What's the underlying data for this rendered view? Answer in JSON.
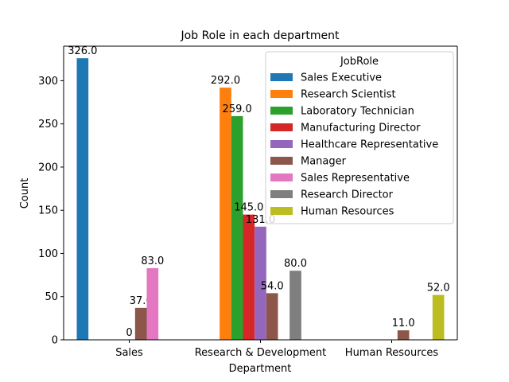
{
  "chart_data": {
    "type": "bar",
    "title": "Job Role in each department",
    "xlabel": "Department",
    "ylabel": "Count",
    "ylim": [
      0,
      340
    ],
    "yticks": [
      0,
      50,
      100,
      150,
      200,
      250,
      300
    ],
    "categories": [
      "Sales",
      "Research & Development",
      "Human Resources"
    ],
    "legend": {
      "title": "JobRole",
      "position": "upper-right"
    },
    "series": [
      {
        "name": "Sales Executive",
        "color": "#1f77b4",
        "values": [
          326,
          null,
          null
        ],
        "labels": [
          "326.0",
          "",
          ""
        ]
      },
      {
        "name": "Research Scientist",
        "color": "#ff7f0e",
        "values": [
          null,
          292,
          null
        ],
        "labels": [
          "",
          "292.0",
          ""
        ]
      },
      {
        "name": "Laboratory Technician",
        "color": "#2ca02c",
        "values": [
          null,
          259,
          null
        ],
        "labels": [
          "",
          "259.0",
          ""
        ]
      },
      {
        "name": "Manufacturing Director",
        "color": "#d62728",
        "values": [
          null,
          145,
          null
        ],
        "labels": [
          "",
          "145.0",
          ""
        ]
      },
      {
        "name": "Healthcare Representative",
        "color": "#9467bd",
        "values": [
          0,
          131,
          null
        ],
        "labels": [
          "0",
          "131.0",
          ""
        ]
      },
      {
        "name": "Manager",
        "color": "#8c564b",
        "values": [
          37,
          54,
          11
        ],
        "labels": [
          "37.0",
          "54.0",
          "11.0"
        ]
      },
      {
        "name": "Sales Representative",
        "color": "#e377c2",
        "values": [
          83,
          null,
          null
        ],
        "labels": [
          "83.0",
          "",
          ""
        ]
      },
      {
        "name": "Research Director",
        "color": "#7f7f7f",
        "values": [
          null,
          80,
          null
        ],
        "labels": [
          "",
          "80.0",
          ""
        ]
      },
      {
        "name": "Human Resources",
        "color": "#bcbd22",
        "values": [
          null,
          null,
          52
        ],
        "labels": [
          "",
          "",
          "52.0"
        ]
      }
    ]
  }
}
